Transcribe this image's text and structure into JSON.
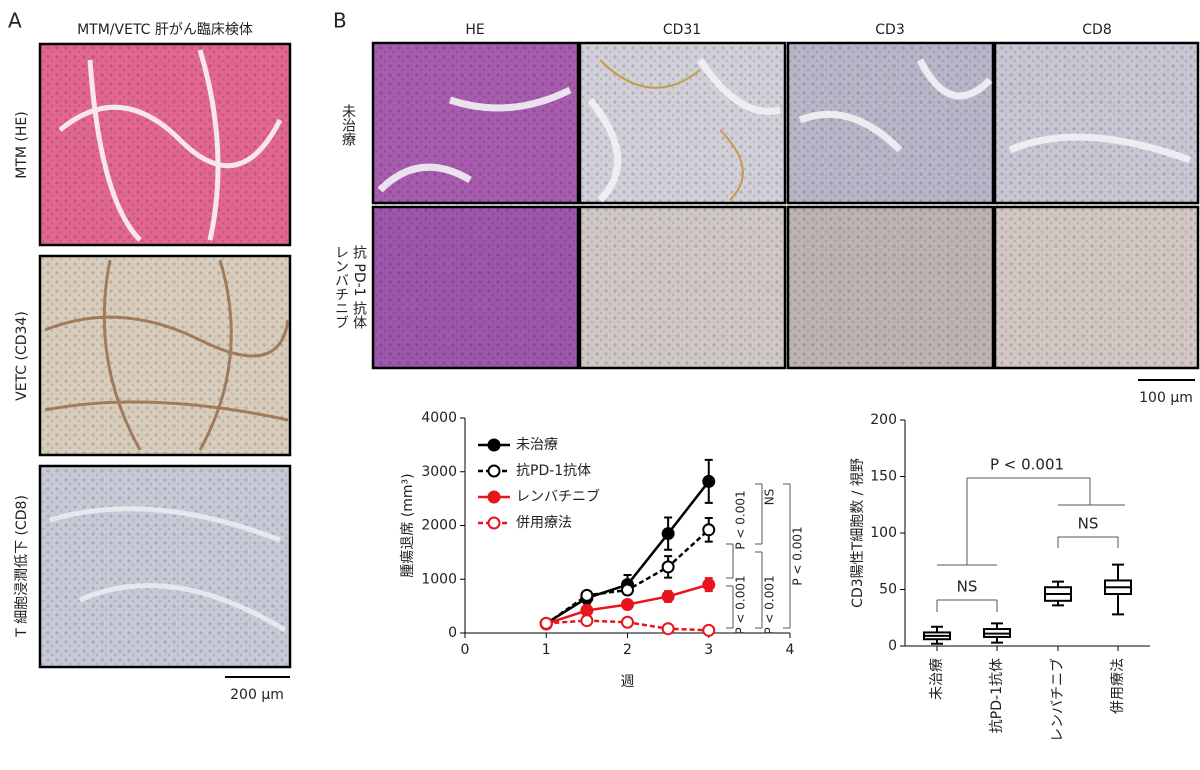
{
  "panel_a": {
    "label": "A",
    "title": "MTM/VETC 肝がん臨床検体",
    "rows": [
      "MTM (HE)",
      "VETC (CD34)",
      "T 細胞浸潤低下 (CD8)"
    ],
    "scale_bar": "200 μm"
  },
  "panel_b": {
    "label": "B",
    "columns": [
      "HE",
      "CD31",
      "CD3",
      "CD8"
    ],
    "rows": [
      [
        "未治療"
      ],
      [
        "レンバチニブ",
        "抗 PD-1 抗体"
      ]
    ],
    "scale_bar": "100 μm"
  },
  "chart_data": [
    {
      "type": "line",
      "xlabel": "週",
      "ylabel": "腫瘍退席 (mm³)",
      "x": [
        1,
        1.5,
        2,
        2.5,
        3
      ],
      "xlim": [
        0,
        4
      ],
      "xticks": [
        0,
        1,
        2,
        3,
        4
      ],
      "ylim": [
        0,
        4000
      ],
      "yticks": [
        0,
        1000,
        2000,
        3000,
        4000
      ],
      "legend": "upper left",
      "series": [
        {
          "name": "未治療",
          "color": "#000000",
          "dashed": false,
          "filled": true,
          "values": [
            180,
            650,
            900,
            1850,
            2820
          ],
          "errors": [
            30,
            100,
            180,
            300,
            400
          ]
        },
        {
          "name": "抗PD-1抗体",
          "color": "#000000",
          "dashed": true,
          "filled": false,
          "values": [
            170,
            700,
            800,
            1230,
            1920
          ],
          "errors": [
            30,
            60,
            80,
            200,
            220
          ]
        },
        {
          "name": "レンバチニブ",
          "color": "#e8141b",
          "dashed": false,
          "filled": true,
          "values": [
            170,
            420,
            530,
            680,
            900
          ],
          "errors": [
            20,
            60,
            80,
            100,
            120
          ]
        },
        {
          "name": "併用療法",
          "color": "#e8141b",
          "dashed": true,
          "filled": false,
          "values": [
            180,
            230,
            200,
            80,
            50
          ],
          "errors": [
            20,
            20,
            20,
            20,
            10
          ]
        }
      ],
      "annotations": [
        "NS",
        "P < 0.001",
        "P < 0.001",
        "P < 0.001",
        "P < 0.001"
      ]
    },
    {
      "type": "box",
      "ylabel": "CD3陽性T細胞数 / 視野",
      "color": "#000000",
      "categories": [
        "未治療",
        "抗PD-1抗体",
        "レンバチニブ",
        "併用療法"
      ],
      "ylim": [
        0,
        200
      ],
      "yticks": [
        0,
        50,
        100,
        150,
        200
      ],
      "min": [
        2,
        3,
        36,
        28
      ],
      "q1": [
        6,
        8,
        40,
        46
      ],
      "median": [
        9,
        11,
        46,
        52
      ],
      "q3": [
        12,
        15,
        52,
        58
      ],
      "max": [
        17,
        20,
        57,
        72
      ],
      "annotations": [
        "P < 0.001",
        "NS",
        "NS"
      ]
    }
  ]
}
